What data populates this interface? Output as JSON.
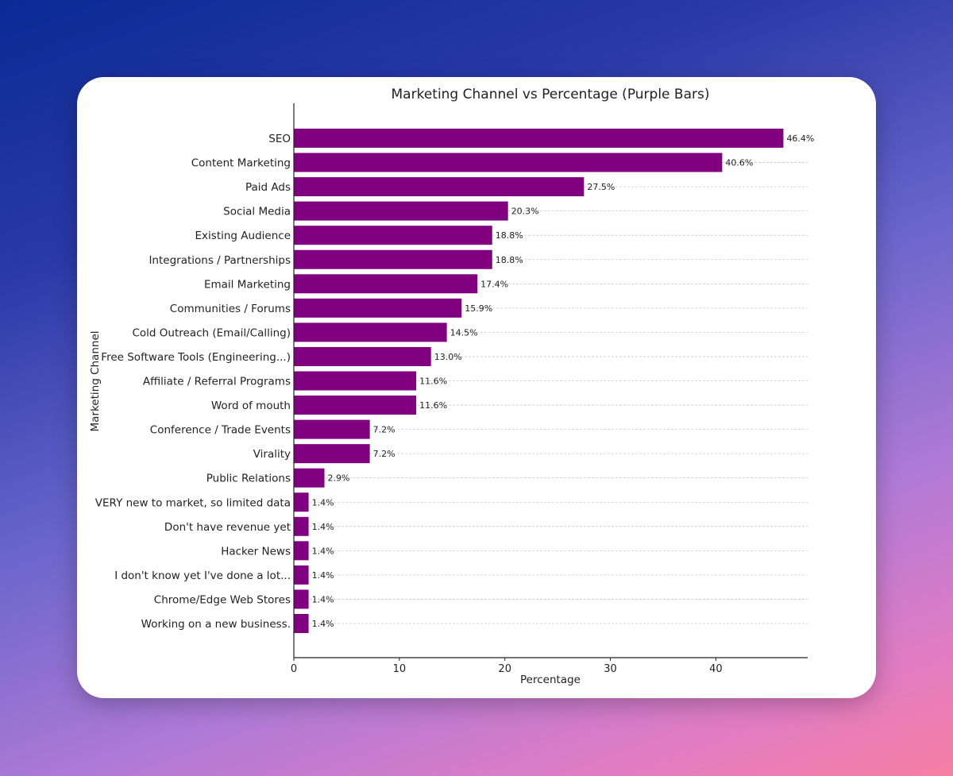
{
  "chart_data": {
    "type": "bar",
    "orientation": "horizontal",
    "title": "Marketing Channel vs Percentage (Purple Bars)",
    "xlabel": "Percentage",
    "ylabel": "Marketing Channel",
    "xlim": [
      0,
      48.7
    ],
    "xticks": [
      0,
      10,
      20,
      30,
      40
    ],
    "grid": "y dashed",
    "bar_color": "#800080",
    "categories": [
      "SEO",
      "Content Marketing",
      "Paid Ads",
      "Social Media",
      "Existing Audience",
      "Integrations / Partnerships",
      "Email Marketing",
      "Communities / Forums",
      "Cold Outreach (Email/Calling)",
      "Free Software Tools (Engineering...)",
      "Affiliate / Referral Programs",
      "Word of mouth",
      "Conference / Trade Events",
      "Virality",
      "Public Relations",
      "VERY new to market, so limited data",
      "Don't have revenue yet",
      "Hacker News",
      "I don't know yet I've done a lot...",
      "Chrome/Edge Web Stores",
      "Working on a new business."
    ],
    "values": [
      46.4,
      40.6,
      27.5,
      20.3,
      18.8,
      18.8,
      17.4,
      15.9,
      14.5,
      13.0,
      11.6,
      11.6,
      7.2,
      7.2,
      2.9,
      1.4,
      1.4,
      1.4,
      1.4,
      1.4,
      1.4
    ],
    "labels": [
      "46.4%",
      "40.6%",
      "27.5%",
      "20.3%",
      "18.8%",
      "18.8%",
      "17.4%",
      "15.9%",
      "14.5%",
      "13.0%",
      "11.6%",
      "11.6%",
      "7.2%",
      "7.2%",
      "2.9%",
      "1.4%",
      "1.4%",
      "1.4%",
      "1.4%",
      "1.4%",
      "1.4%"
    ]
  }
}
